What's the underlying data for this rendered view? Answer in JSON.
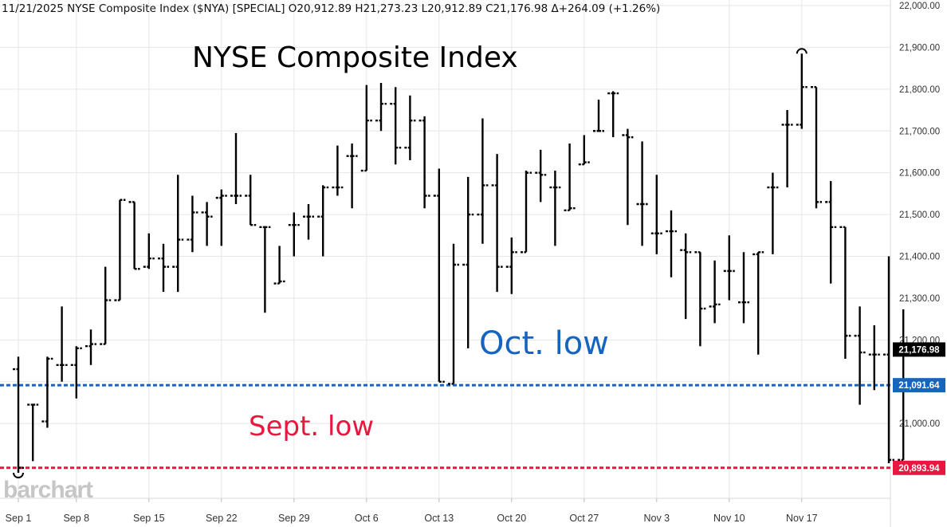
{
  "header": {
    "ohlc_text": "11/21/2025 NYSE Composite Index ($NYA) [SPECIAL] O20,912.89 H21,273.23 L20,912.89 C21,176.98 Δ+264.09 (+1.26%)"
  },
  "watermark": "barchart",
  "chart_data": {
    "type": "ohlc",
    "title": "NYSE Composite Index",
    "ylim": [
      20870,
      22000
    ],
    "y_ticks": [
      21000,
      21100,
      21200,
      21300,
      21400,
      21500,
      21600,
      21700,
      21800,
      21900,
      22000
    ],
    "y_tick_labels": [
      "21,000.00",
      "21,100.00",
      "21,200.00",
      "21,300.00",
      "21,400.00",
      "21,500.00",
      "21,600.00",
      "21,700.00",
      "21,800.00",
      "21,900.00",
      "22,000.00"
    ],
    "x_ticks": [
      {
        "label": "Sep 1",
        "index": 0
      },
      {
        "label": "Sep 8",
        "index": 4
      },
      {
        "label": "Sep 15",
        "index": 9
      },
      {
        "label": "Sep 22",
        "index": 14
      },
      {
        "label": "Sep 29",
        "index": 19
      },
      {
        "label": "Oct 6",
        "index": 24
      },
      {
        "label": "Oct 13",
        "index": 29
      },
      {
        "label": "Oct 20",
        "index": 34
      },
      {
        "label": "Oct 27",
        "index": 39
      },
      {
        "label": "Nov 3",
        "index": 44
      },
      {
        "label": "Nov 10",
        "index": 49
      },
      {
        "label": "Nov 17",
        "index": 54
      }
    ],
    "bars": [
      {
        "date": "Sep 2",
        "o": 21130,
        "h": 21160,
        "l": 20882,
        "c": 20893.94
      },
      {
        "date": "Sep 3",
        "o": 21045,
        "h": 21045,
        "l": 20910,
        "c": 21045
      },
      {
        "date": "Sep 4",
        "o": 21005,
        "h": 21160,
        "l": 20990,
        "c": 21155
      },
      {
        "date": "Sep 5",
        "o": 21140,
        "h": 21280,
        "l": 21100,
        "c": 21140
      },
      {
        "date": "Sep 8",
        "o": 21140,
        "h": 21185,
        "l": 21060,
        "c": 21180
      },
      {
        "date": "Sep 9",
        "o": 21185,
        "h": 21225,
        "l": 21140,
        "c": 21190
      },
      {
        "date": "Sep 10",
        "o": 21190,
        "h": 21375,
        "l": 21190,
        "c": 21295
      },
      {
        "date": "Sep 11",
        "o": 21295,
        "h": 21535,
        "l": 21295,
        "c": 21535
      },
      {
        "date": "Sep 12",
        "o": 21530,
        "h": 21530,
        "l": 21370,
        "c": 21370
      },
      {
        "date": "Sep 15",
        "o": 21375,
        "h": 21455,
        "l": 21370,
        "c": 21395
      },
      {
        "date": "Sep 16",
        "o": 21395,
        "h": 21430,
        "l": 21315,
        "c": 21375
      },
      {
        "date": "Sep 17",
        "o": 21375,
        "h": 21595,
        "l": 21315,
        "c": 21440
      },
      {
        "date": "Sep 18",
        "o": 21440,
        "h": 21545,
        "l": 21410,
        "c": 21505
      },
      {
        "date": "Sep 19",
        "o": 21505,
        "h": 21530,
        "l": 21425,
        "c": 21495
      },
      {
        "date": "Sep 22",
        "o": 21540,
        "h": 21560,
        "l": 21425,
        "c": 21545
      },
      {
        "date": "Sep 23",
        "o": 21545,
        "h": 21695,
        "l": 21525,
        "c": 21545
      },
      {
        "date": "Sep 24",
        "o": 21545,
        "h": 21595,
        "l": 21475,
        "c": 21475
      },
      {
        "date": "Sep 25",
        "o": 21470,
        "h": 21470,
        "l": 21265,
        "c": 21470
      },
      {
        "date": "Sep 26",
        "o": 21335,
        "h": 21425,
        "l": 21335,
        "c": 21340
      },
      {
        "date": "Sep 29",
        "o": 21475,
        "h": 21505,
        "l": 21400,
        "c": 21475
      },
      {
        "date": "Sep 30",
        "o": 21495,
        "h": 21525,
        "l": 21440,
        "c": 21495
      },
      {
        "date": "Oct 1",
        "o": 21495,
        "h": 21570,
        "l": 21400,
        "c": 21565
      },
      {
        "date": "Oct 2",
        "o": 21565,
        "h": 21665,
        "l": 21545,
        "c": 21565
      },
      {
        "date": "Oct 3",
        "o": 21640,
        "h": 21670,
        "l": 21515,
        "c": 21640
      },
      {
        "date": "Oct 6",
        "o": 21605,
        "h": 21810,
        "l": 21605,
        "c": 21725
      },
      {
        "date": "Oct 7",
        "o": 21725,
        "h": 21815,
        "l": 21700,
        "c": 21765
      },
      {
        "date": "Oct 8",
        "o": 21765,
        "h": 21805,
        "l": 21620,
        "c": 21660
      },
      {
        "date": "Oct 9",
        "o": 21660,
        "h": 21785,
        "l": 21630,
        "c": 21725
      },
      {
        "date": "Oct 10",
        "o": 21725,
        "h": 21735,
        "l": 21515,
        "c": 21545
      },
      {
        "date": "Oct 13",
        "o": 21545,
        "h": 21610,
        "l": 21100,
        "c": 21100
      },
      {
        "date": "Oct 14",
        "o": 21095,
        "h": 21430,
        "l": 21095,
        "c": 21380
      },
      {
        "date": "Oct 15",
        "o": 21380,
        "h": 21590,
        "l": 21180,
        "c": 21500
      },
      {
        "date": "Oct 16",
        "o": 21500,
        "h": 21730,
        "l": 21430,
        "c": 21570
      },
      {
        "date": "Oct 17",
        "o": 21570,
        "h": 21645,
        "l": 21315,
        "c": 21375
      },
      {
        "date": "Oct 20",
        "o": 21375,
        "h": 21445,
        "l": 21310,
        "c": 21410
      },
      {
        "date": "Oct 21",
        "o": 21410,
        "h": 21605,
        "l": 21410,
        "c": 21600
      },
      {
        "date": "Oct 22",
        "o": 21600,
        "h": 21655,
        "l": 21530,
        "c": 21595
      },
      {
        "date": "Oct 23",
        "o": 21565,
        "h": 21605,
        "l": 21425,
        "c": 21565
      },
      {
        "date": "Oct 24",
        "o": 21510,
        "h": 21670,
        "l": 21510,
        "c": 21515
      },
      {
        "date": "Oct 27",
        "o": 21620,
        "h": 21690,
        "l": 21620,
        "c": 21625
      },
      {
        "date": "Oct 28",
        "o": 21700,
        "h": 21775,
        "l": 21700,
        "c": 21700
      },
      {
        "date": "Oct 29",
        "o": 21790,
        "h": 21795,
        "l": 21685,
        "c": 21790
      },
      {
        "date": "Oct 30",
        "o": 21690,
        "h": 21705,
        "l": 21475,
        "c": 21685
      },
      {
        "date": "Oct 31",
        "o": 21525,
        "h": 21675,
        "l": 21425,
        "c": 21525
      },
      {
        "date": "Nov 3",
        "o": 21455,
        "h": 21595,
        "l": 21405,
        "c": 21455
      },
      {
        "date": "Nov 4",
        "o": 21460,
        "h": 21510,
        "l": 21350,
        "c": 21460
      },
      {
        "date": "Nov 5",
        "o": 21415,
        "h": 21455,
        "l": 21250,
        "c": 21410
      },
      {
        "date": "Nov 6",
        "o": 21410,
        "h": 21410,
        "l": 21185,
        "c": 21275
      },
      {
        "date": "Nov 7",
        "o": 21280,
        "h": 21390,
        "l": 21240,
        "c": 21285
      },
      {
        "date": "Nov 10",
        "o": 21365,
        "h": 21450,
        "l": 21295,
        "c": 21365
      },
      {
        "date": "Nov 11",
        "o": 21290,
        "h": 21410,
        "l": 21240,
        "c": 21290
      },
      {
        "date": "Nov 12",
        "o": 21405,
        "h": 21410,
        "l": 21165,
        "c": 21410
      },
      {
        "date": "Nov 13",
        "o": 21565,
        "h": 21600,
        "l": 21405,
        "c": 21565
      },
      {
        "date": "Nov 14",
        "o": 21715,
        "h": 21750,
        "l": 21565,
        "c": 21715
      },
      {
        "date": "Nov 17",
        "o": 21715,
        "h": 21885,
        "l": 21705,
        "c": 21805
      },
      {
        "date": "Nov 18",
        "o": 21805,
        "h": 21805,
        "l": 21515,
        "c": 21530
      },
      {
        "date": "Nov 19",
        "o": 21530,
        "h": 21580,
        "l": 21335,
        "c": 21470
      },
      {
        "date": "Nov 20",
        "o": 21470,
        "h": 21470,
        "l": 21155,
        "c": 21210
      },
      {
        "date": "Nov 20b",
        "o": 21210,
        "h": 21280,
        "l": 21045,
        "c": 21170
      },
      {
        "date": "Nov 21a",
        "o": 21165,
        "h": 21235,
        "l": 21080,
        "c": 21165
      },
      {
        "date": "Nov 21b",
        "o": 21165,
        "h": 21400,
        "l": 20905,
        "c": 20912.89
      },
      {
        "date": "Nov 21",
        "o": 20912.89,
        "h": 21273.23,
        "l": 20912.89,
        "c": 21176.98
      }
    ],
    "levels": [
      {
        "value": 21091.64,
        "label": "21,091.64",
        "color": "#1565c0"
      },
      {
        "value": 20893.94,
        "label": "20,893.94",
        "color": "#e8173f"
      }
    ],
    "last_price": {
      "value": 21176.98,
      "label": "21,176.98",
      "color": "#000000"
    },
    "annotations": [
      {
        "text": "Oct. low",
        "color": "#1565c0"
      },
      {
        "text": "Sept. low",
        "color": "#e8173f"
      }
    ],
    "grid": true,
    "grid_color": "#e6e6e6"
  }
}
